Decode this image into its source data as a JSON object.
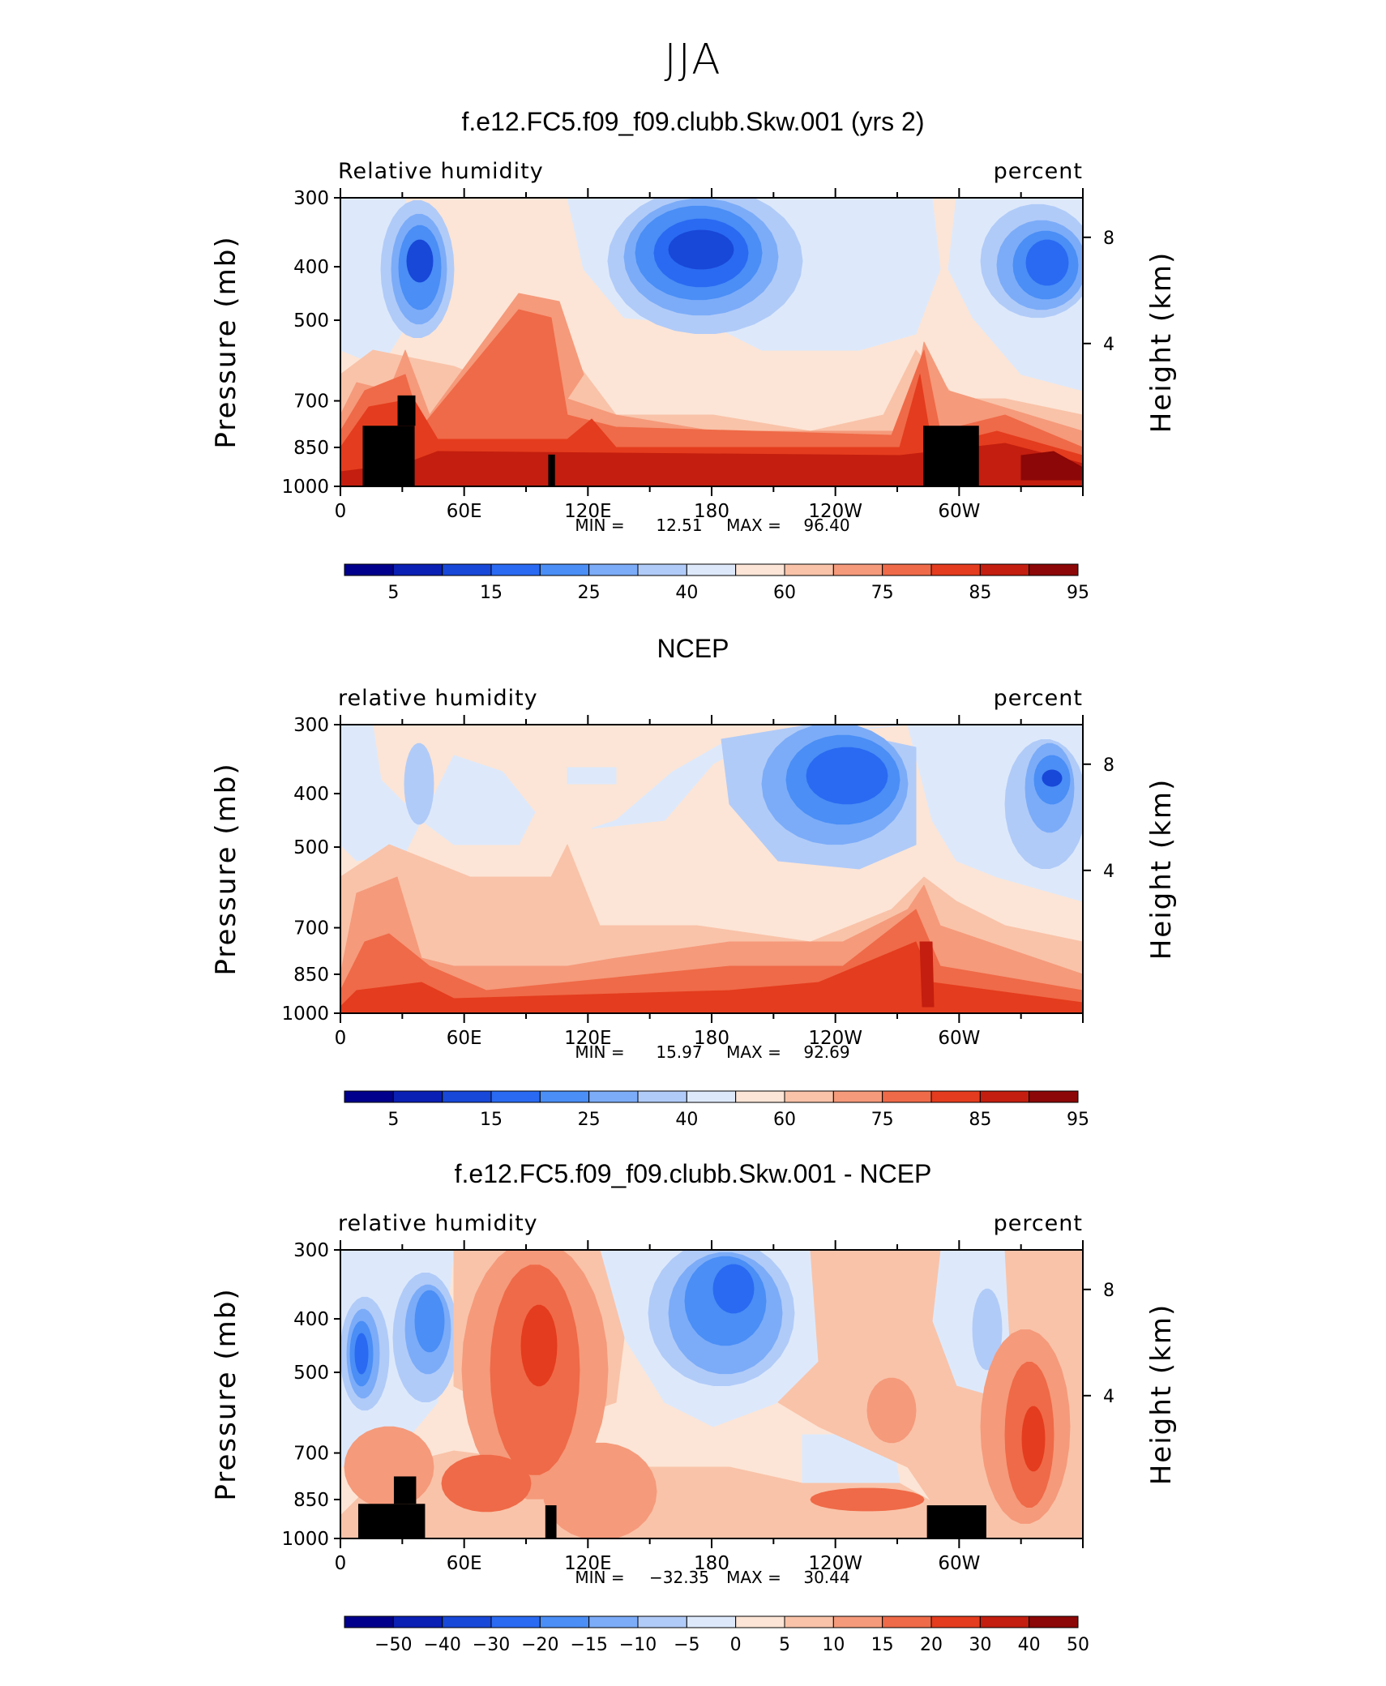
{
  "figure_title": "JJA",
  "colors": {
    "model_palette": [
      "#00008c",
      "#0a1fb4",
      "#1848d8",
      "#2a6af2",
      "#4a8ef6",
      "#7cacf8",
      "#b1cbf8",
      "#dde9fb",
      "#fce5d6",
      "#f9c3a9",
      "#f59a7b",
      "#ef6a48",
      "#e43c1e",
      "#c31e0f",
      "#8c0707"
    ],
    "diff_palette": [
      "#00008c",
      "#0a1fb4",
      "#1848d8",
      "#2a6af2",
      "#4a8ef6",
      "#7cacf8",
      "#b1cbf8",
      "#dde9fb",
      "#fce5d6",
      "#f9c3a9",
      "#f59a7b",
      "#ef6a48",
      "#e43c1e",
      "#c31e0f",
      "#8c0707"
    ],
    "land_mask": "#000000"
  },
  "chart_data": [
    {
      "type": "heatmap",
      "title": "f.e12.FC5.f09_f09.clubb.Skw.001 (yrs 2)",
      "left_label": "Relative humidity",
      "right_label": "percent",
      "ylabel": "Pressure (mb)",
      "y2label": "Height (km)",
      "y_ticks": [
        "300",
        "400",
        "500",
        "700",
        "850",
        "1000"
      ],
      "y2_ticks": [
        "8",
        "4"
      ],
      "x_ticks": [
        "0",
        "60E",
        "120E",
        "180",
        "120W",
        "60W"
      ],
      "min_label": "MIN =",
      "min_value": "12.51",
      "max_label": "MAX =",
      "max_value": "96.40",
      "colorbar_labels": [
        "5",
        "15",
        "25",
        "40",
        "60",
        "75",
        "85",
        "95"
      ],
      "palette": "model",
      "x_range": [
        0,
        360
      ],
      "y_range": [
        1000,
        300
      ],
      "y_scale": "log",
      "grid": false
    },
    {
      "type": "heatmap",
      "title": "NCEP",
      "left_label": "relative humidity",
      "right_label": "percent",
      "ylabel": "Pressure (mb)",
      "y2label": "Height (km)",
      "y_ticks": [
        "300",
        "400",
        "500",
        "700",
        "850",
        "1000"
      ],
      "y2_ticks": [
        "8",
        "4"
      ],
      "x_ticks": [
        "0",
        "60E",
        "120E",
        "180",
        "120W",
        "60W"
      ],
      "min_label": "MIN =",
      "min_value": "15.97",
      "max_label": "MAX =",
      "max_value": "92.69",
      "colorbar_labels": [
        "5",
        "15",
        "25",
        "40",
        "60",
        "75",
        "85",
        "95"
      ],
      "palette": "model",
      "x_range": [
        0,
        360
      ],
      "y_range": [
        1000,
        300
      ],
      "y_scale": "log",
      "grid": false
    },
    {
      "type": "heatmap",
      "title": "f.e12.FC5.f09_f09.clubb.Skw.001 - NCEP",
      "left_label": "relative humidity",
      "right_label": "percent",
      "ylabel": "Pressure (mb)",
      "y2label": "Height (km)",
      "y_ticks": [
        "300",
        "400",
        "500",
        "700",
        "850",
        "1000"
      ],
      "y2_ticks": [
        "8",
        "4"
      ],
      "x_ticks": [
        "0",
        "60E",
        "120E",
        "180",
        "120W",
        "60W"
      ],
      "min_label": "MIN =",
      "min_value": "−32.35",
      "max_label": "MAX =",
      "max_value": "30.44",
      "colorbar_labels": [
        "−50",
        "−40",
        "−30",
        "−20",
        "−15",
        "−10",
        "−5",
        "0",
        "5",
        "10",
        "15",
        "20",
        "30",
        "40",
        "50"
      ],
      "palette": "diff",
      "x_range": [
        0,
        360
      ],
      "y_range": [
        1000,
        300
      ],
      "y_scale": "log",
      "grid": false
    }
  ]
}
